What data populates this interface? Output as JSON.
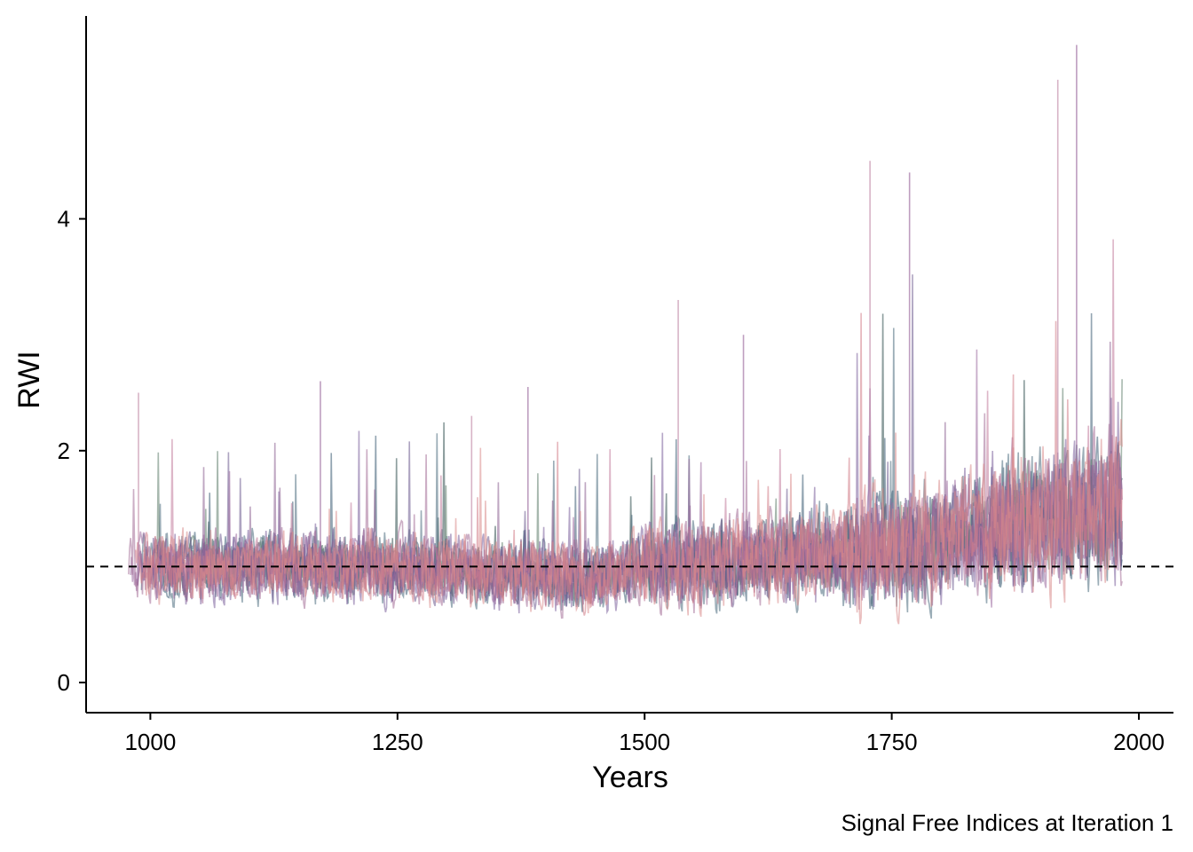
{
  "chart_data": {
    "type": "line",
    "xlabel": "Years",
    "ylabel": "RWI",
    "caption": "Signal Free Indices at Iteration 1",
    "xlim": [
      935,
      2035
    ],
    "ylim": [
      -0.26,
      5.75
    ],
    "x_ticks": [
      1000,
      1250,
      1500,
      1750,
      2000
    ],
    "y_ticks": [
      0,
      2,
      4
    ],
    "x_tick_labels": [
      "1000",
      "1250",
      "1500",
      "1750",
      "2000"
    ],
    "y_tick_labels": [
      "0",
      "2",
      "4"
    ],
    "reference_line": {
      "y": 1,
      "style": "dashed",
      "color": "#000000"
    },
    "grid": false,
    "legend": "none",
    "x_range_of_series": [
      977,
      1983
    ],
    "series_count": 12,
    "series_colors": [
      "#2f4f4f",
      "#3b5b72",
      "#486a7c",
      "#5e7d6c",
      "#6c5a8e",
      "#7a5f9a",
      "#8a5f8f",
      "#9b6a9e",
      "#a36c96",
      "#c17a9a",
      "#d17b86",
      "#d98a8a"
    ],
    "notable_peaks": [
      {
        "x": 988,
        "y": 2.5
      },
      {
        "x": 1172,
        "y": 2.6
      },
      {
        "x": 1325,
        "y": 2.3
      },
      {
        "x": 1382,
        "y": 2.55
      },
      {
        "x": 1534,
        "y": 3.3
      },
      {
        "x": 1600,
        "y": 3.0
      },
      {
        "x": 1728,
        "y": 4.5
      },
      {
        "x": 1768,
        "y": 4.4
      },
      {
        "x": 1918,
        "y": 5.2
      },
      {
        "x": 1937,
        "y": 5.5
      }
    ],
    "notes_mean_level": [
      {
        "x": 1000,
        "y": 1.0
      },
      {
        "x": 1250,
        "y": 1.0
      },
      {
        "x": 1450,
        "y": 0.9
      },
      {
        "x": 1500,
        "y": 1.0
      },
      {
        "x": 1750,
        "y": 1.15
      },
      {
        "x": 1900,
        "y": 1.4
      },
      {
        "x": 1983,
        "y": 1.5
      }
    ]
  }
}
